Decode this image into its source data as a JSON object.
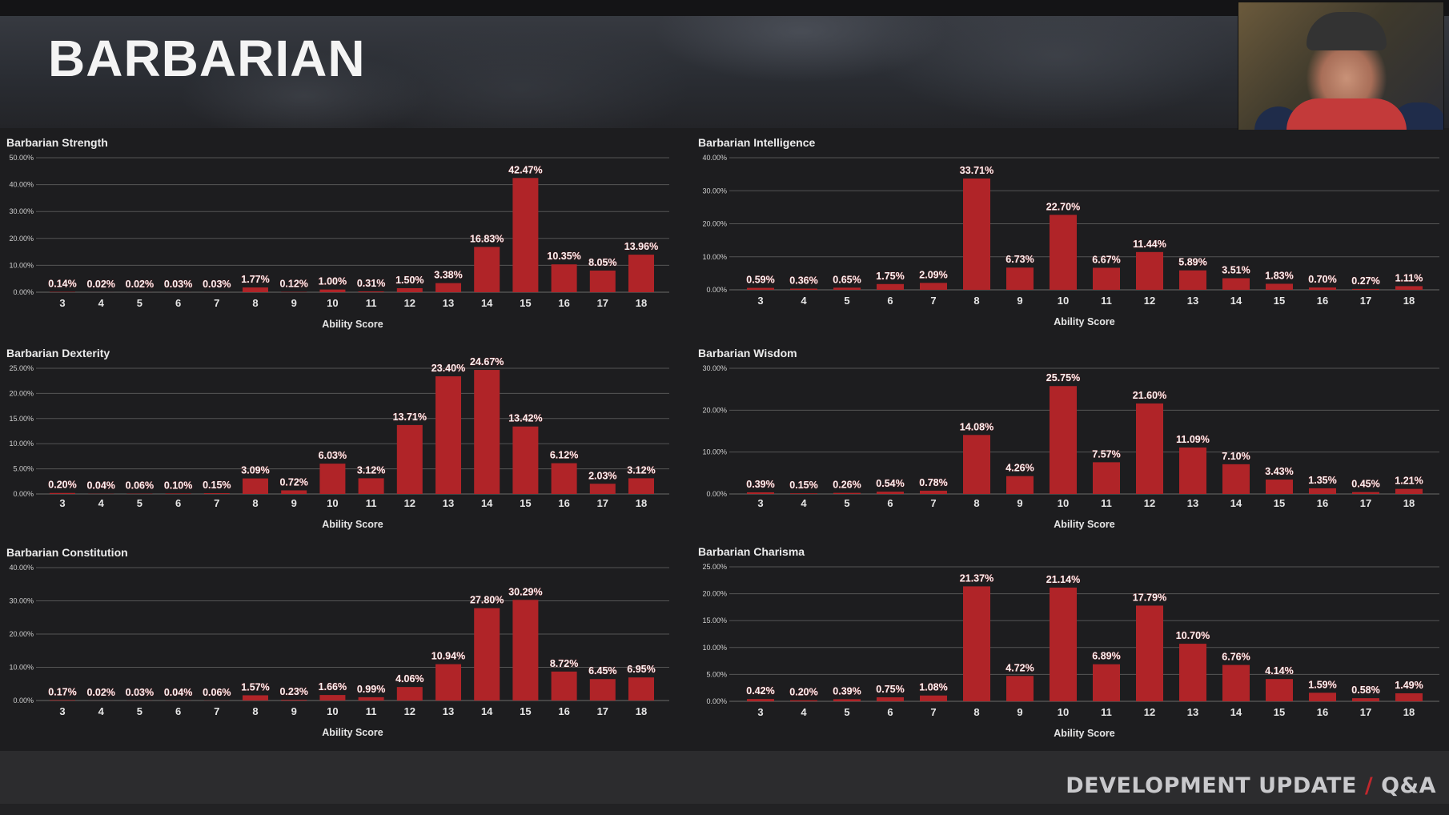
{
  "header": {
    "title": "BARBARIAN"
  },
  "footer": {
    "left": "DEVELOPMENT UPDATE",
    "sep": "/",
    "right": "Q&A"
  },
  "colors": {
    "bar": "#b02428",
    "label": "#f2f2f2",
    "grid": "#555555",
    "background": "#1d1d1f"
  },
  "chart_data": [
    {
      "type": "bar",
      "title": "Barbarian Strength",
      "xlabel": "Ability Score",
      "ylabel": "",
      "categories": [
        "3",
        "4",
        "5",
        "6",
        "7",
        "8",
        "9",
        "10",
        "11",
        "12",
        "13",
        "14",
        "15",
        "16",
        "17",
        "18"
      ],
      "values": [
        0.14,
        0.02,
        0.02,
        0.03,
        0.03,
        1.77,
        0.12,
        1.0,
        0.31,
        1.5,
        3.38,
        16.83,
        42.47,
        10.35,
        8.05,
        13.96
      ],
      "data_labels": [
        "0.14%",
        "0.02%",
        "0.02%",
        "0.03%",
        "0.03%",
        "1.77%",
        "0.12%",
        "1.00%",
        "0.31%",
        "1.50%",
        "3.38%",
        "16.83%",
        "42.47%",
        "10.35%",
        "8.05%",
        "13.96%"
      ],
      "yticks": [
        "0.00%",
        "10.00%",
        "20.00%",
        "30.00%",
        "40.00%",
        "50.00%"
      ],
      "ylim": [
        0,
        50
      ]
    },
    {
      "type": "bar",
      "title": "Barbarian Intelligence",
      "xlabel": "Ability Score",
      "ylabel": "",
      "categories": [
        "3",
        "4",
        "5",
        "6",
        "7",
        "8",
        "9",
        "10",
        "11",
        "12",
        "13",
        "14",
        "15",
        "16",
        "17",
        "18"
      ],
      "values": [
        0.59,
        0.36,
        0.65,
        1.75,
        2.09,
        33.71,
        6.73,
        22.7,
        6.67,
        11.44,
        5.89,
        3.51,
        1.83,
        0.7,
        0.27,
        1.11
      ],
      "data_labels": [
        "0.59%",
        "0.36%",
        "0.65%",
        "1.75%",
        "2.09%",
        "33.71%",
        "6.73%",
        "22.70%",
        "6.67%",
        "11.44%",
        "5.89%",
        "3.51%",
        "1.83%",
        "0.70%",
        "0.27%",
        "1.11%"
      ],
      "yticks": [
        "0.00%",
        "10.00%",
        "20.00%",
        "30.00%",
        "40.00%"
      ],
      "ylim": [
        0,
        40
      ]
    },
    {
      "type": "bar",
      "title": "Barbarian Dexterity",
      "xlabel": "Ability Score",
      "ylabel": "",
      "categories": [
        "3",
        "4",
        "5",
        "6",
        "7",
        "8",
        "9",
        "10",
        "11",
        "12",
        "13",
        "14",
        "15",
        "16",
        "17",
        "18"
      ],
      "values": [
        0.2,
        0.04,
        0.06,
        0.1,
        0.15,
        3.09,
        0.72,
        6.03,
        3.12,
        13.71,
        23.4,
        24.67,
        13.42,
        6.12,
        2.03,
        3.12
      ],
      "data_labels": [
        "0.20%",
        "0.04%",
        "0.06%",
        "0.10%",
        "0.15%",
        "3.09%",
        "0.72%",
        "6.03%",
        "3.12%",
        "13.71%",
        "23.40%",
        "24.67%",
        "13.42%",
        "6.12%",
        "2.03%",
        "3.12%"
      ],
      "yticks": [
        "0.00%",
        "5.00%",
        "10.00%",
        "15.00%",
        "20.00%",
        "25.00%"
      ],
      "ylim": [
        0,
        25
      ]
    },
    {
      "type": "bar",
      "title": "Barbarian Wisdom",
      "xlabel": "Ability Score",
      "ylabel": "",
      "categories": [
        "3",
        "4",
        "5",
        "6",
        "7",
        "8",
        "9",
        "10",
        "11",
        "12",
        "13",
        "14",
        "15",
        "16",
        "17",
        "18"
      ],
      "values": [
        0.39,
        0.15,
        0.26,
        0.54,
        0.78,
        14.08,
        4.26,
        25.75,
        7.57,
        21.6,
        11.09,
        7.1,
        3.43,
        1.35,
        0.45,
        1.21
      ],
      "data_labels": [
        "0.39%",
        "0.15%",
        "0.26%",
        "0.54%",
        "0.78%",
        "14.08%",
        "4.26%",
        "25.75%",
        "7.57%",
        "21.60%",
        "11.09%",
        "7.10%",
        "3.43%",
        "1.35%",
        "0.45%",
        "1.21%"
      ],
      "yticks": [
        "0.00%",
        "10.00%",
        "20.00%",
        "30.00%"
      ],
      "ylim": [
        0,
        30
      ]
    },
    {
      "type": "bar",
      "title": "Barbarian Constitution",
      "xlabel": "Ability Score",
      "ylabel": "",
      "categories": [
        "3",
        "4",
        "5",
        "6",
        "7",
        "8",
        "9",
        "10",
        "11",
        "12",
        "13",
        "14",
        "15",
        "16",
        "17",
        "18"
      ],
      "values": [
        0.17,
        0.02,
        0.03,
        0.04,
        0.06,
        1.57,
        0.23,
        1.66,
        0.99,
        4.06,
        10.94,
        27.8,
        30.29,
        8.72,
        6.45,
        6.95
      ],
      "data_labels": [
        "0.17%",
        "0.02%",
        "0.03%",
        "0.04%",
        "0.06%",
        "1.57%",
        "0.23%",
        "1.66%",
        "0.99%",
        "4.06%",
        "10.94%",
        "27.80%",
        "30.29%",
        "8.72%",
        "6.45%",
        "6.95%"
      ],
      "yticks": [
        "0.00%",
        "10.00%",
        "20.00%",
        "30.00%",
        "40.00%"
      ],
      "ylim": [
        0,
        40
      ]
    },
    {
      "type": "bar",
      "title": "Barbarian Charisma",
      "xlabel": "Ability Score",
      "ylabel": "",
      "categories": [
        "3",
        "4",
        "5",
        "6",
        "7",
        "8",
        "9",
        "10",
        "11",
        "12",
        "13",
        "14",
        "15",
        "16",
        "17",
        "18"
      ],
      "values": [
        0.42,
        0.2,
        0.39,
        0.75,
        1.08,
        21.37,
        4.72,
        21.14,
        6.89,
        17.79,
        10.7,
        6.76,
        4.14,
        1.59,
        0.58,
        1.49
      ],
      "data_labels": [
        "0.42%",
        "0.20%",
        "0.39%",
        "0.75%",
        "1.08%",
        "21.37%",
        "4.72%",
        "21.14%",
        "6.89%",
        "17.79%",
        "10.70%",
        "6.76%",
        "4.14%",
        "1.59%",
        "0.58%",
        "1.49%"
      ],
      "yticks": [
        "0.00%",
        "5.00%",
        "10.00%",
        "15.00%",
        "20.00%",
        "25.00%"
      ],
      "ylim": [
        0,
        25
      ]
    }
  ]
}
